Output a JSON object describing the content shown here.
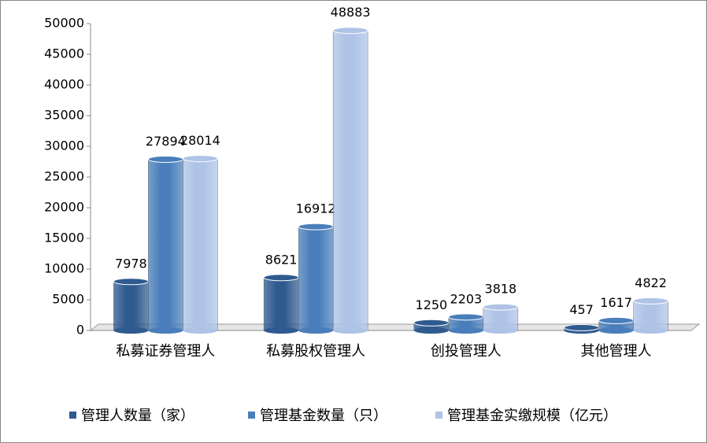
{
  "chart_data": {
    "type": "bar",
    "categories": [
      "私募证券管理人",
      "私募股权管理人",
      "创投管理人",
      "其他管理人"
    ],
    "series": [
      {
        "name": "管理人数量（家）",
        "color": "#2f5a8f",
        "values": [
          7978,
          8621,
          1250,
          457
        ]
      },
      {
        "name": "管理基金数量（只）",
        "color": "#4a7ebb",
        "values": [
          27894,
          16912,
          2203,
          1617
        ]
      },
      {
        "name": "管理基金实缴规模（亿元）",
        "color": "#aec3e6",
        "values": [
          28014,
          48883,
          3818,
          4822
        ]
      }
    ],
    "ylim": [
      0,
      50000
    ],
    "yticks": [
      0,
      5000,
      10000,
      15000,
      20000,
      25000,
      30000,
      35000,
      40000,
      45000,
      50000
    ],
    "grid": false
  }
}
